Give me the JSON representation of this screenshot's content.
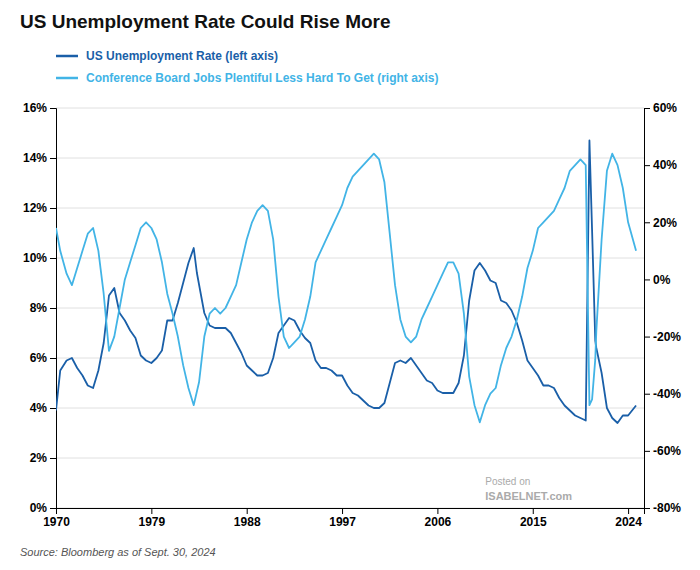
{
  "chart_data": {
    "type": "line",
    "title": "US Unemployment Rate Could Rise More",
    "annotations": [
      "Source: Bloomberg as of Sept. 30, 2024",
      "Posted on",
      "ISABELNET.com"
    ],
    "legend": "top",
    "grid": true,
    "xlim": [
      1970,
      2025.5
    ],
    "xticks": [
      1970,
      1979,
      1988,
      1997,
      2006,
      2015,
      2024
    ],
    "ylim": [
      0,
      16
    ],
    "yticks": [
      {
        "value": 0,
        "label": "0%"
      },
      {
        "value": 2,
        "label": "2%"
      },
      {
        "value": 4,
        "label": "4%"
      },
      {
        "value": 6,
        "label": "6%"
      },
      {
        "value": 8,
        "label": "8%"
      },
      {
        "value": 10,
        "label": "10%"
      },
      {
        "value": 12,
        "label": "12%"
      },
      {
        "value": 14,
        "label": "14%"
      },
      {
        "value": 16,
        "label": "16%"
      }
    ],
    "y2lim": [
      -80,
      60
    ],
    "y2ticks": [
      {
        "value": -80,
        "label": "-80%"
      },
      {
        "value": -60,
        "label": "-60%"
      },
      {
        "value": -40,
        "label": "-40%"
      },
      {
        "value": -20,
        "label": "-20%"
      },
      {
        "value": 0,
        "label": "0%"
      },
      {
        "value": 20,
        "label": "20%"
      },
      {
        "value": 40,
        "label": "40%"
      },
      {
        "value": 60,
        "label": "60%"
      }
    ],
    "series": [
      {
        "name": "US Unemployment Rate (left axis)",
        "color": "#1a5fa8",
        "x": [
          1970.0,
          1970.4,
          1971.0,
          1971.5,
          1972.0,
          1972.5,
          1973.0,
          1973.5,
          1974.0,
          1974.5,
          1975.0,
          1975.5,
          1976.0,
          1976.5,
          1977.0,
          1977.5,
          1978.0,
          1978.5,
          1979.0,
          1979.5,
          1980.0,
          1980.5,
          1981.0,
          1981.5,
          1982.0,
          1982.5,
          1983.0,
          1983.3,
          1984.0,
          1984.5,
          1985.0,
          1985.5,
          1986.0,
          1986.5,
          1987.0,
          1987.5,
          1988.0,
          1988.5,
          1989.0,
          1989.5,
          1990.0,
          1990.5,
          1991.0,
          1991.5,
          1992.0,
          1992.5,
          1993.0,
          1993.5,
          1994.0,
          1994.5,
          1995.0,
          1995.5,
          1996.0,
          1996.5,
          1997.0,
          1997.5,
          1998.0,
          1998.5,
          1999.0,
          1999.5,
          2000.0,
          2000.5,
          2001.0,
          2001.5,
          2002.0,
          2002.5,
          2003.0,
          2003.5,
          2004.0,
          2004.5,
          2005.0,
          2005.5,
          2006.0,
          2006.5,
          2007.0,
          2007.5,
          2008.0,
          2008.5,
          2009.0,
          2009.5,
          2010.0,
          2010.5,
          2011.0,
          2011.5,
          2012.0,
          2012.5,
          2013.0,
          2013.5,
          2014.0,
          2014.5,
          2015.0,
          2015.5,
          2016.0,
          2016.5,
          2017.0,
          2017.5,
          2018.0,
          2018.5,
          2019.0,
          2019.5,
          2020.0,
          2020.35,
          2020.6,
          2020.9,
          2021.0,
          2021.5,
          2022.0,
          2022.5,
          2023.0,
          2023.5,
          2024.0,
          2024.75
        ],
        "values": [
          3.9,
          5.5,
          5.9,
          6.0,
          5.6,
          5.3,
          4.9,
          4.8,
          5.5,
          6.6,
          8.5,
          8.8,
          7.8,
          7.5,
          7.1,
          6.8,
          6.1,
          5.9,
          5.8,
          6.0,
          6.3,
          7.5,
          7.5,
          8.2,
          9.0,
          9.8,
          10.4,
          9.4,
          7.8,
          7.3,
          7.2,
          7.2,
          7.2,
          7.0,
          6.6,
          6.2,
          5.7,
          5.5,
          5.3,
          5.3,
          5.4,
          6.0,
          7.0,
          7.3,
          7.6,
          7.5,
          7.1,
          6.8,
          6.6,
          5.9,
          5.6,
          5.6,
          5.5,
          5.3,
          5.3,
          4.9,
          4.6,
          4.5,
          4.3,
          4.1,
          4.0,
          4.0,
          4.2,
          5.0,
          5.8,
          5.9,
          5.8,
          6.0,
          5.7,
          5.4,
          5.1,
          5.0,
          4.7,
          4.6,
          4.6,
          4.6,
          5.0,
          6.1,
          8.3,
          9.5,
          9.8,
          9.5,
          9.1,
          9.0,
          8.3,
          8.2,
          7.9,
          7.4,
          6.7,
          5.9,
          5.6,
          5.3,
          4.9,
          4.9,
          4.8,
          4.4,
          4.1,
          3.9,
          3.7,
          3.6,
          3.5,
          14.7,
          11.1,
          6.7,
          6.4,
          5.4,
          4.0,
          3.6,
          3.4,
          3.7,
          3.7,
          4.1
        ]
      },
      {
        "name": "Conference Board Jobs Plentiful Less Hard To Get (right axis)",
        "color": "#42b4e6",
        "axis": "y2",
        "x": [
          1970.0,
          1970.4,
          1971.0,
          1971.5,
          1972.0,
          1972.5,
          1973.0,
          1973.5,
          1974.0,
          1974.5,
          1975.0,
          1975.5,
          1976.0,
          1976.5,
          1977.0,
          1977.5,
          1978.0,
          1978.5,
          1979.0,
          1979.5,
          1980.0,
          1980.5,
          1981.0,
          1981.5,
          1982.0,
          1982.5,
          1983.0,
          1983.5,
          1984.0,
          1984.5,
          1985.0,
          1985.5,
          1986.0,
          1986.5,
          1987.0,
          1987.5,
          1988.0,
          1988.5,
          1989.0,
          1989.5,
          1990.0,
          1990.5,
          1991.0,
          1991.5,
          1992.0,
          1992.5,
          1993.0,
          1993.5,
          1994.0,
          1994.5,
          1995.0,
          1995.5,
          1996.0,
          1996.5,
          1997.0,
          1997.5,
          1998.0,
          1998.5,
          1999.0,
          1999.5,
          2000.0,
          2000.5,
          2001.0,
          2001.5,
          2002.0,
          2002.5,
          2003.0,
          2003.5,
          2004.0,
          2004.5,
          2005.0,
          2005.5,
          2006.0,
          2006.5,
          2007.0,
          2007.5,
          2008.0,
          2008.5,
          2009.0,
          2009.5,
          2010.0,
          2010.5,
          2011.0,
          2011.5,
          2012.0,
          2012.5,
          2013.0,
          2013.5,
          2014.0,
          2014.5,
          2015.0,
          2015.5,
          2016.0,
          2016.5,
          2017.0,
          2017.5,
          2018.0,
          2018.5,
          2019.0,
          2019.5,
          2020.0,
          2020.35,
          2020.6,
          2020.9,
          2021.0,
          2021.5,
          2022.0,
          2022.5,
          2023.0,
          2023.5,
          2024.0,
          2024.75
        ],
        "values": [
          18.0,
          10.0,
          2.0,
          -2.0,
          4.0,
          10.0,
          16.0,
          18.0,
          10.0,
          -5.0,
          -25.0,
          -20.0,
          -10.0,
          0.0,
          6.0,
          12.0,
          18.0,
          20.0,
          18.0,
          14.0,
          6.0,
          -5.0,
          -12.0,
          -20.0,
          -30.0,
          -38.0,
          -44.0,
          -36.0,
          -20.0,
          -12.0,
          -10.0,
          -12.0,
          -10.0,
          -6.0,
          -2.0,
          6.0,
          14.0,
          20.0,
          24.0,
          26.0,
          24.0,
          14.0,
          -6.0,
          -20.0,
          -24.0,
          -22.0,
          -20.0,
          -14.0,
          -6.0,
          6.0,
          10.0,
          14.0,
          18.0,
          22.0,
          26.0,
          32.0,
          36.0,
          38.0,
          40.0,
          42.0,
          44.0,
          42.0,
          34.0,
          16.0,
          -2.0,
          -14.0,
          -20.0,
          -22.0,
          -20.0,
          -14.0,
          -10.0,
          -6.0,
          -2.0,
          2.0,
          6.0,
          6.0,
          2.0,
          -12.0,
          -34.0,
          -44.0,
          -50.0,
          -44.0,
          -40.0,
          -38.0,
          -30.0,
          -24.0,
          -20.0,
          -14.0,
          -6.0,
          4.0,
          10.0,
          18.0,
          20.0,
          22.0,
          24.0,
          28.0,
          32.0,
          38.0,
          40.0,
          42.0,
          40.0,
          -44.0,
          -42.0,
          -28.0,
          -18.0,
          14.0,
          38.0,
          44.0,
          40.0,
          32.0,
          20.0,
          10.0
        ]
      }
    ]
  }
}
